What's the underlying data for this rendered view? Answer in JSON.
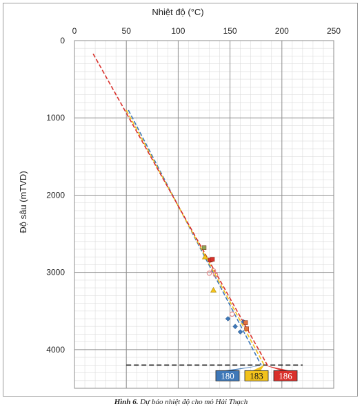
{
  "caption": {
    "figure_label": "Hình 6.",
    "text": "Dự báo nhiệt độ cho mỏ Hải Thạch"
  },
  "chart_data": {
    "type": "scatter",
    "title": "",
    "xlabel": "Nhiệt độ (°C)",
    "ylabel": "Độ sâu (mTVD)",
    "xlim": [
      0,
      250
    ],
    "ylim": [
      0,
      4500
    ],
    "y_inverted": true,
    "x_ticks": [
      0,
      50,
      100,
      150,
      200,
      250
    ],
    "y_ticks": [
      0,
      1000,
      2000,
      3000,
      4000
    ],
    "grid": true,
    "colors": {
      "blue": "#3f78b8",
      "yellow": "#f2c21c",
      "red": "#d9302b",
      "orange": "#e5733c",
      "green": "#8aa558",
      "teal": "#66b4c4",
      "pink": "#e58a8a"
    },
    "series": [
      {
        "color": "blue",
        "points": [
          [
            148,
            3600
          ],
          [
            155,
            3700
          ],
          [
            160,
            3770
          ],
          [
            163,
            3640
          ]
        ],
        "trend": [
          [
            52,
            900
          ],
          [
            180,
            4200
          ]
        ]
      },
      {
        "color": "yellow",
        "points": [
          [
            126,
            2800
          ],
          [
            134,
            3230
          ]
        ],
        "trend": [
          [
            50,
            900
          ],
          [
            183,
            4200
          ]
        ]
      },
      {
        "color": "red",
        "points": [
          [
            131,
            2840
          ],
          [
            133,
            2830
          ]
        ],
        "trend": [
          [
            18,
            170
          ],
          [
            186,
            4200
          ]
        ]
      },
      {
        "color": "orange",
        "points": [
          [
            165,
            3650
          ],
          [
            166,
            3730
          ]
        ],
        "trend": []
      },
      {
        "color": "green",
        "points": [
          [
            125,
            2680
          ]
        ],
        "trend": []
      },
      {
        "color": "pink",
        "points": [
          [
            130,
            3010
          ],
          [
            134,
            2980
          ],
          [
            136,
            3030
          ],
          [
            152,
            3540
          ]
        ],
        "trend": []
      }
    ],
    "annotations": {
      "reference_depth": 4200,
      "reference_x_range": [
        50,
        220
      ],
      "boxes": [
        {
          "label": "180",
          "color": "blue",
          "x": 180
        },
        {
          "label": "183",
          "color": "yellow",
          "x": 183
        },
        {
          "label": "186",
          "color": "red",
          "x": 186
        }
      ]
    }
  }
}
